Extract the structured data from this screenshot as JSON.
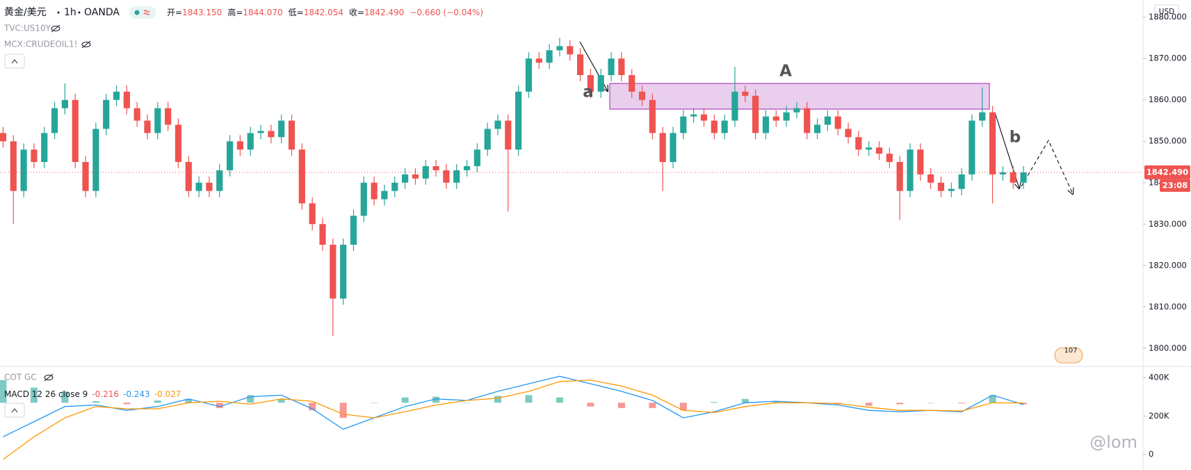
{
  "chart_data": [
    {
      "type": "candlestick",
      "title": "黄金/美元",
      "interval": "1h",
      "source": "OANDA",
      "ohlc_legend": [
        {
          "label": "开=",
          "value": "1843.150"
        },
        {
          "label": "高=",
          "value": "1844.070"
        },
        {
          "label": "低=",
          "value": "1842.054"
        },
        {
          "label": "收=",
          "value": "1842.490"
        }
      ],
      "change": "−0.660 (−0.04%)",
      "overlays": [
        "TVC:US10Y",
        "MCX:CRUDEOIL1!"
      ],
      "currency": "USD",
      "up_color": "#26a69a",
      "down_color": "#ef5350",
      "open": [
        1852,
        1850,
        1838,
        1848,
        1845,
        1852,
        1858,
        1860,
        1845,
        1838,
        1853,
        1860,
        1862,
        1858,
        1855,
        1852,
        1858,
        1854,
        1845,
        1838,
        1840,
        1838,
        1843,
        1850,
        1848,
        1852,
        1852.5,
        1851,
        1855,
        1848,
        1835,
        1830,
        1825,
        1812,
        1825,
        1832,
        1840,
        1836,
        1838,
        1840,
        1842,
        1841,
        1844,
        1843,
        1840,
        1843,
        1844,
        1848,
        1853,
        1855,
        1848,
        1862,
        1870,
        1869,
        1872,
        1873,
        1871,
        1866,
        1862,
        1866,
        1870,
        1866,
        1862,
        1860,
        1852,
        1845,
        1852,
        1856,
        1856.5,
        1855,
        1852,
        1855,
        1862,
        1861,
        1852,
        1856,
        1855,
        1857,
        1858,
        1852,
        1854,
        1856,
        1853,
        1851,
        1848,
        1848.5,
        1847,
        1845,
        1838,
        1848,
        1842,
        1840,
        1838,
        1838.5,
        1842,
        1855,
        1857,
        1842,
        1842.5,
        1840
      ],
      "high": [
        1853.5,
        1851.5,
        1849.5,
        1849.5,
        1853.5,
        1859.5,
        1864,
        1861.5,
        1846.5,
        1854.5,
        1861.5,
        1863.5,
        1863.5,
        1859.5,
        1856.5,
        1859.5,
        1859.5,
        1855.5,
        1846.5,
        1841.5,
        1841.5,
        1844.5,
        1851.5,
        1851.5,
        1853.5,
        1854,
        1854,
        1856.5,
        1856.5,
        1849.5,
        1836.5,
        1831.5,
        1826.5,
        1826.5,
        1833.5,
        1841.5,
        1841.5,
        1839.5,
        1841.5,
        1843.5,
        1843.5,
        1845.5,
        1845.5,
        1844.5,
        1844.5,
        1845.5,
        1849.5,
        1854.5,
        1856.5,
        1856.5,
        1863.5,
        1871.5,
        1871.5,
        1873.5,
        1875,
        1874.5,
        1872.5,
        1867.5,
        1867.5,
        1871.5,
        1871.5,
        1867.5,
        1863.5,
        1861.5,
        1853.5,
        1853.5,
        1857.5,
        1858,
        1858,
        1856.5,
        1856.5,
        1868,
        1863.5,
        1862.5,
        1857.5,
        1857.5,
        1858.5,
        1859.5,
        1859.5,
        1855.5,
        1857.5,
        1857.5,
        1854.5,
        1852.5,
        1850,
        1850,
        1848.5,
        1846.5,
        1849.5,
        1849.5,
        1843.5,
        1841.5,
        1840,
        1843.5,
        1856.5,
        1863,
        1858.5,
        1844,
        1844,
        1844
      ],
      "low": [
        1848.5,
        1830,
        1836.5,
        1843.5,
        1843.5,
        1850.5,
        1856.5,
        1843.5,
        1836.5,
        1836.5,
        1851.5,
        1858.5,
        1856.5,
        1853.5,
        1850.5,
        1850.5,
        1852.5,
        1843.5,
        1836.5,
        1836.5,
        1836.5,
        1836.5,
        1841.5,
        1846.5,
        1846.5,
        1850.5,
        1849.5,
        1849.5,
        1846.5,
        1833.5,
        1828.5,
        1823.5,
        1803,
        1810.5,
        1823.5,
        1830.5,
        1834.5,
        1834.5,
        1836.5,
        1838.5,
        1839.5,
        1839.5,
        1841.5,
        1838.5,
        1838.5,
        1841.5,
        1842.5,
        1846.5,
        1851.5,
        1833,
        1846.5,
        1860.5,
        1867.5,
        1867.5,
        1870.5,
        1869.5,
        1864.5,
        1860.5,
        1860.5,
        1864.5,
        1864.5,
        1860.5,
        1858.5,
        1850.5,
        1838,
        1843.5,
        1850.5,
        1854.5,
        1853.5,
        1850.5,
        1850.5,
        1853.5,
        1859.5,
        1850.5,
        1850.5,
        1853.5,
        1853.5,
        1855.5,
        1850.5,
        1850.5,
        1852.5,
        1851.5,
        1849.5,
        1846.5,
        1846.5,
        1845.5,
        1843.5,
        1831,
        1836.5,
        1840.5,
        1838.5,
        1836.5,
        1836.5,
        1837,
        1840.5,
        1853.5,
        1835,
        1840.5,
        1838.5,
        1838.5
      ],
      "close": [
        1850,
        1838,
        1848,
        1845,
        1852,
        1858,
        1860,
        1845,
        1838,
        1853,
        1860,
        1862,
        1858,
        1855,
        1852,
        1858,
        1854,
        1845,
        1838,
        1840,
        1838,
        1843,
        1850,
        1848,
        1852,
        1852.5,
        1851,
        1855,
        1848,
        1835,
        1830,
        1825,
        1812,
        1825,
        1832,
        1840,
        1836,
        1838,
        1840,
        1842,
        1841,
        1844,
        1843,
        1840,
        1843,
        1844,
        1848,
        1853,
        1855,
        1848,
        1862,
        1870,
        1869,
        1872,
        1873,
        1871,
        1866,
        1862,
        1866,
        1870,
        1866,
        1862,
        1860,
        1852,
        1845,
        1852,
        1856,
        1856.5,
        1855,
        1852,
        1855,
        1862,
        1861,
        1852,
        1856,
        1855,
        1857,
        1858,
        1852,
        1854,
        1856,
        1853,
        1851,
        1848,
        1848.5,
        1847,
        1845,
        1838,
        1848,
        1842,
        1840,
        1838,
        1838.5,
        1842,
        1855,
        1857,
        1842,
        1842.5,
        1840,
        1842.49
      ],
      "xlim": [
        -0.3,
        110.6
      ],
      "ylim": [
        1795.6,
        1884.15
      ],
      "yticks": [
        {
          "value": 1800,
          "label": "1800.000"
        },
        {
          "value": 1810,
          "label": "1810.000"
        },
        {
          "value": 1820,
          "label": "1820.000"
        },
        {
          "value": 1830,
          "label": "1830.000"
        },
        {
          "value": 1840,
          "label": "1840.000"
        },
        {
          "value": 1850,
          "label": "1850.000"
        },
        {
          "value": 1860,
          "label": "1860.000"
        },
        {
          "value": 1870,
          "label": "1870.000"
        },
        {
          "value": 1880,
          "label": "1880.000"
        }
      ],
      "last_price": {
        "value": 1842.49,
        "label": "1842.490"
      },
      "countdown": "23:08",
      "annotations": [
        "a",
        "A",
        "b"
      ],
      "badge": "107",
      "watermark": "@lom"
    },
    {
      "type": "macd",
      "overlay": "COT GC",
      "title": "MACD 12 26 close 9",
      "x": [
        0,
        3,
        6,
        9,
        12,
        15,
        18,
        21,
        24,
        27,
        30,
        33,
        36,
        39,
        42,
        45,
        48,
        51,
        54,
        57,
        60,
        63,
        66,
        69,
        72,
        75,
        78,
        81,
        84,
        87,
        90,
        93,
        96,
        99
      ],
      "series": [
        {
          "kind": "histogram",
          "positive_color": "#26a69a",
          "negative_color": "#ef5350",
          "values": [
            3,
            2,
            1.5,
            0.2,
            -0.2,
            0.3,
            0.5,
            -0.7,
            1.0,
            0.5,
            -1.0,
            -2.0,
            0,
            0.7,
            0.8,
            0,
            0.9,
            1.0,
            0.7,
            -0.5,
            -0.7,
            -0.7,
            -1.0,
            0.1,
            0.5,
            0.2,
            0,
            -0.2,
            -0.4,
            -0.2,
            0,
            -0.1,
            1.0,
            -0.216
          ]
        },
        {
          "kind": "line",
          "color": "#2196f3",
          "values": [
            -4.5,
            -2.5,
            -0.5,
            -0.3,
            -1.0,
            -0.5,
            0.5,
            -0.5,
            0.8,
            1.0,
            -0.8,
            -3.5,
            -2.0,
            -0.5,
            0.5,
            0.3,
            1.5,
            2.5,
            3.5,
            2.5,
            1.5,
            0.3,
            -2.0,
            -1.2,
            0.0,
            0.2,
            0.0,
            -0.3,
            -1.0,
            -1.2,
            -1.0,
            -1.2,
            1.0,
            -0.243
          ]
        },
        {
          "kind": "line",
          "color": "#ff9800",
          "values": [
            -7.5,
            -4.5,
            -2,
            -0.5,
            -0.8,
            -0.8,
            0,
            0.2,
            -0.2,
            0.5,
            0.2,
            -1.5,
            -2.0,
            -1.2,
            -0.3,
            0.3,
            0.6,
            1.5,
            2.8,
            3.0,
            2.2,
            1.0,
            -1.0,
            -1.3,
            -0.5,
            0,
            0,
            -0.1,
            -0.6,
            -1.0,
            -1.0,
            -1.1,
            0,
            -0.027
          ]
        }
      ],
      "ylim": [
        -8.7,
        4.8
      ],
      "y2lim": [
        -75000,
        459000
      ],
      "y2ticks": [
        0,
        {
          "value": 200000,
          "label": "200K"
        },
        {
          "value": 400000,
          "label": "400K"
        }
      ]
    }
  ]
}
